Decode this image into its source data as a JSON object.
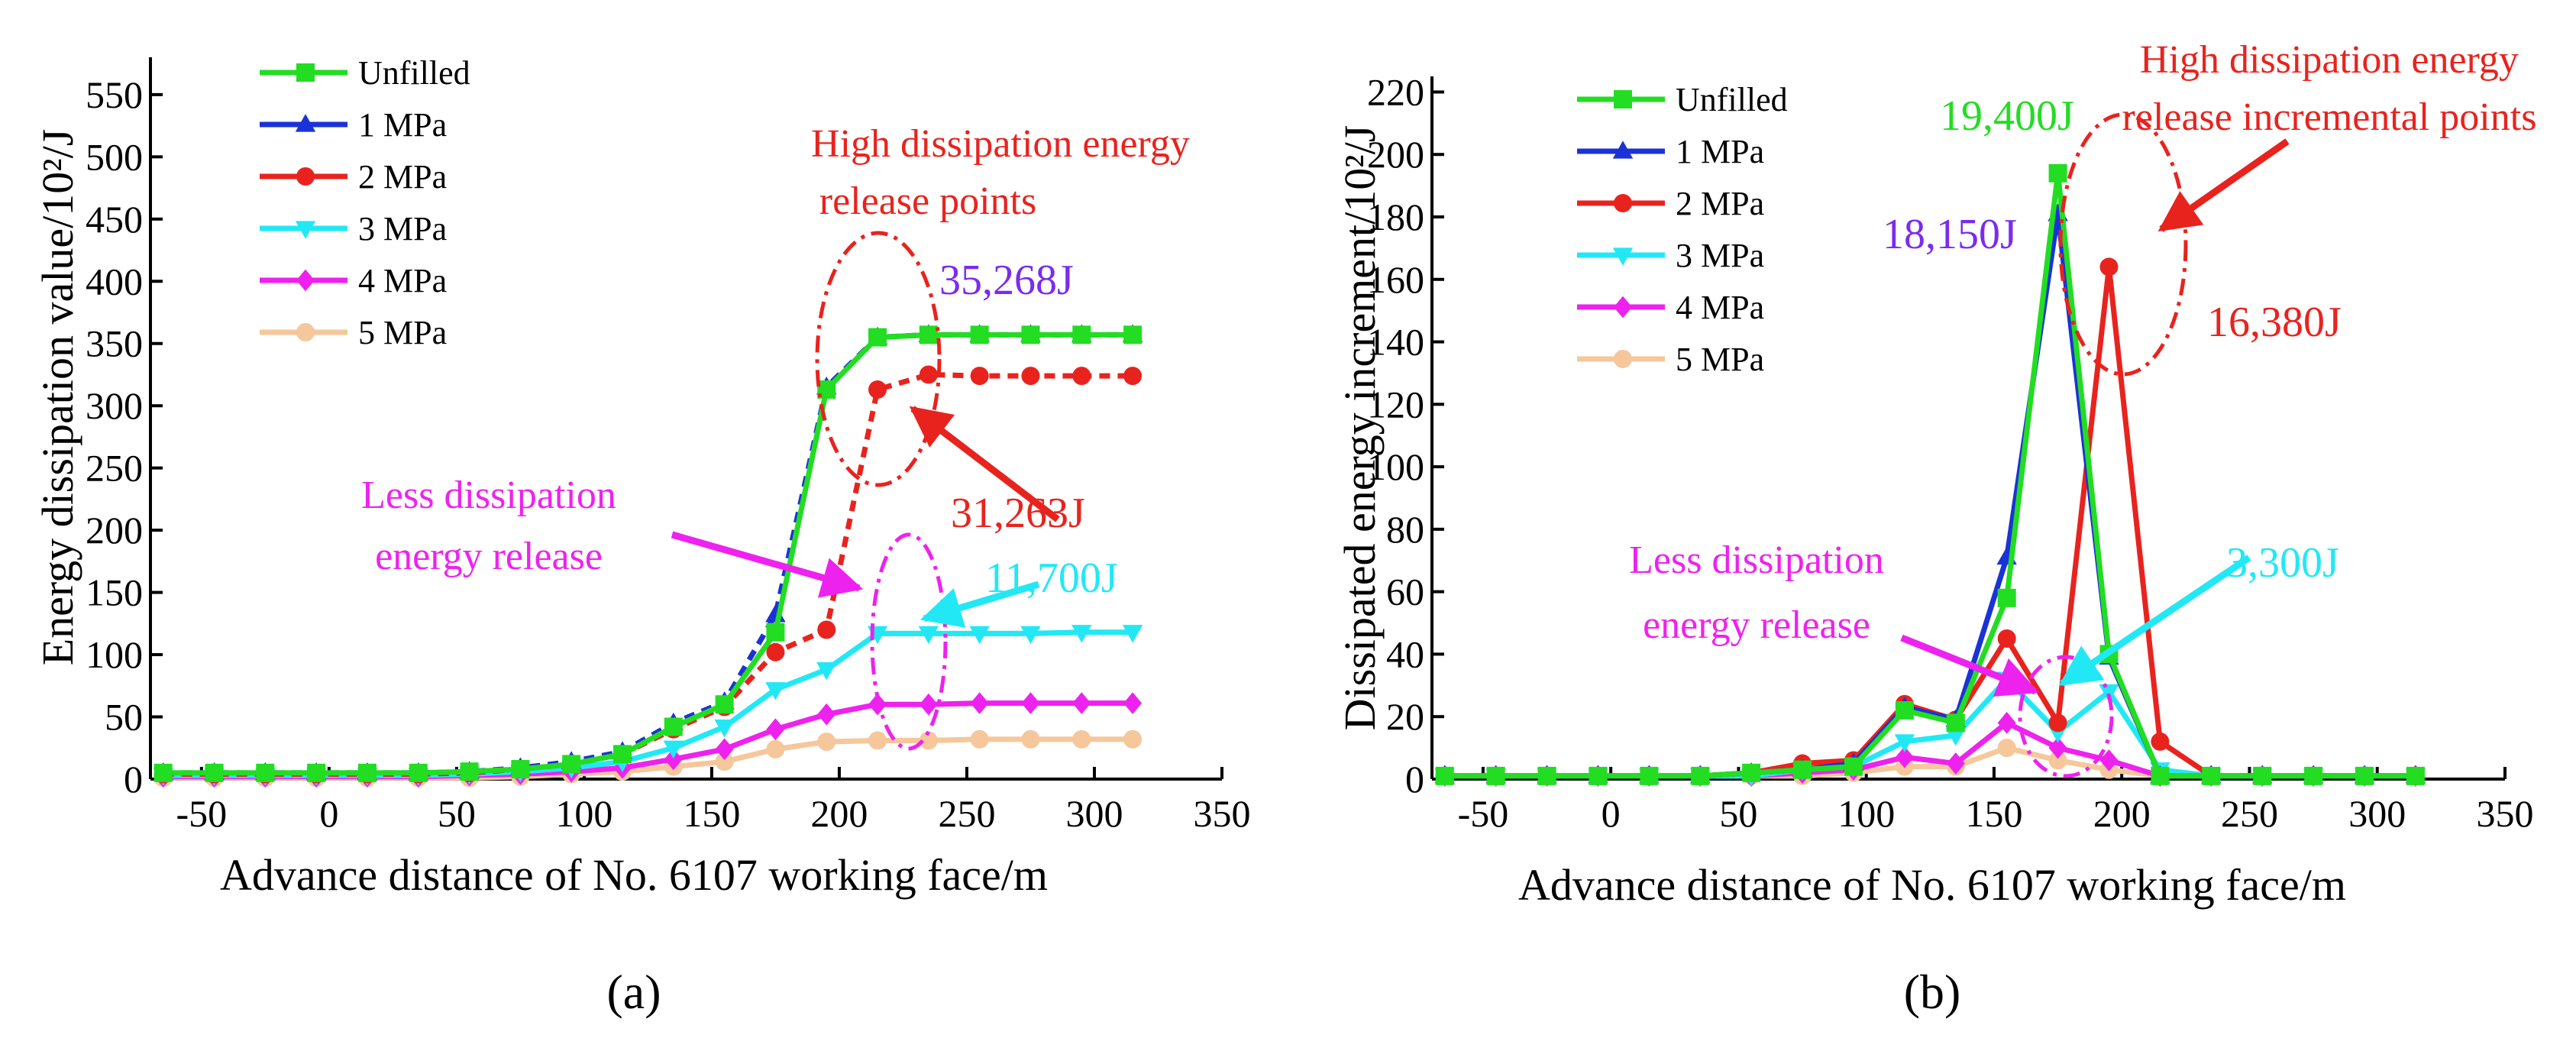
{
  "chart_data": [
    {
      "type": "line",
      "panel_label": "(a)",
      "xlabel": "Advance distance of No. 6107 working face/m",
      "ylabel": "Energy dissipation value/10²/J",
      "xlim": [
        -70,
        350
      ],
      "ylim": [
        0,
        580
      ],
      "x_ticks": [
        -50,
        0,
        50,
        100,
        150,
        200,
        250,
        300,
        350
      ],
      "y_ticks": [
        0,
        50,
        100,
        150,
        200,
        250,
        300,
        350,
        400,
        450,
        500,
        550
      ],
      "grid": false,
      "legend_position": "top-left",
      "x": [
        -65,
        -45,
        -25,
        -5,
        15,
        35,
        55,
        75,
        95,
        115,
        135,
        155,
        175,
        195,
        215,
        235,
        255,
        275,
        295,
        315
      ],
      "series": [
        {
          "name": "Unfilled",
          "color": "#22dd22",
          "marker": "square",
          "values": [
            5,
            5,
            5,
            5,
            5,
            5,
            6,
            8,
            12,
            20,
            42,
            60,
            118,
            313,
            355,
            357,
            357,
            357,
            357,
            357
          ]
        },
        {
          "name": "1 MPa",
          "color": "#1a33d6",
          "marker": "triangle-up",
          "values": [
            5,
            5,
            5,
            5,
            5,
            5,
            6,
            9,
            14,
            22,
            45,
            62,
            132,
            315,
            355,
            357,
            357,
            357,
            357,
            357
          ]
        },
        {
          "name": "2 MPa",
          "color": "#e8231e",
          "marker": "circle",
          "values": [
            4,
            4,
            4,
            4,
            4,
            4,
            5,
            8,
            12,
            20,
            40,
            58,
            102,
            120,
            313,
            325,
            324,
            324,
            324,
            324
          ]
        },
        {
          "name": "3 MPa",
          "color": "#22e8f5",
          "marker": "triangle-down",
          "values": [
            3,
            3,
            3,
            3,
            3,
            3,
            4,
            6,
            9,
            14,
            25,
            42,
            72,
            88,
            117,
            117,
            117,
            117,
            118,
            118
          ]
        },
        {
          "name": "4 MPa",
          "color": "#ee22ee",
          "marker": "diamond",
          "values": [
            2,
            2,
            2,
            2,
            2,
            2,
            3,
            4,
            6,
            9,
            16,
            24,
            40,
            52,
            60,
            60,
            61,
            61,
            61,
            61
          ]
        },
        {
          "name": "5 MPa",
          "color": "#f5c79a",
          "marker": "circle",
          "values": [
            1,
            1,
            1,
            1,
            1,
            1,
            1,
            2,
            4,
            6,
            10,
            14,
            24,
            30,
            31,
            31,
            32,
            32,
            32,
            32
          ]
        }
      ],
      "annotations": [
        {
          "text": "High dissipation energy",
          "color": "#e8231e"
        },
        {
          "text": "release points",
          "color": "#e8231e"
        },
        {
          "text": "Less dissipation",
          "color": "#ee22ee"
        },
        {
          "text": "energy release",
          "color": "#ee22ee"
        },
        {
          "text": "35,268J",
          "color": "#7a2cf0"
        },
        {
          "text": "31,263J",
          "color": "#e8231e"
        },
        {
          "text": "11,700J",
          "color": "#22e8f5"
        }
      ]
    },
    {
      "type": "line",
      "panel_label": "(b)",
      "xlabel": "Advance distance of No. 6107 working face/m",
      "ylabel": "Dissipated energy increment/10²/J",
      "xlim": [
        -70,
        350
      ],
      "ylim": [
        0,
        225
      ],
      "x_ticks": [
        -50,
        0,
        50,
        100,
        150,
        200,
        250,
        300,
        350
      ],
      "y_ticks": [
        0,
        20,
        40,
        60,
        80,
        100,
        120,
        140,
        160,
        180,
        200,
        220
      ],
      "grid": false,
      "legend_position": "top-left",
      "x": [
        -65,
        -45,
        -25,
        -5,
        15,
        35,
        55,
        75,
        95,
        115,
        135,
        155,
        175,
        195,
        215,
        235,
        255,
        275,
        295,
        315
      ],
      "series": [
        {
          "name": "Unfilled",
          "color": "#22dd22",
          "marker": "square",
          "values": [
            1,
            1,
            1,
            1,
            1,
            1,
            2,
            3,
            4,
            22,
            18,
            58,
            194,
            40,
            1,
            1,
            1,
            1,
            1,
            1
          ]
        },
        {
          "name": "1 MPa",
          "color": "#1a33d6",
          "marker": "triangle-up",
          "values": [
            1,
            1,
            1,
            1,
            1,
            1,
            2,
            3,
            5,
            23,
            19,
            71,
            181,
            39,
            1,
            1,
            1,
            1,
            1,
            1
          ]
        },
        {
          "name": "2 MPa",
          "color": "#e8231e",
          "marker": "circle",
          "values": [
            1,
            1,
            1,
            1,
            1,
            1,
            2,
            5,
            6,
            24,
            19,
            45,
            18,
            164,
            12,
            1,
            1,
            1,
            1,
            1
          ]
        },
        {
          "name": "3 MPa",
          "color": "#22e8f5",
          "marker": "triangle-down",
          "values": [
            1,
            1,
            1,
            1,
            1,
            1,
            1,
            3,
            4,
            12,
            14,
            32,
            15,
            28,
            3,
            1,
            1,
            1,
            1,
            1
          ]
        },
        {
          "name": "4 MPa",
          "color": "#ee22ee",
          "marker": "diamond",
          "values": [
            1,
            1,
            1,
            1,
            1,
            1,
            1,
            2,
            3,
            7,
            5,
            18,
            10,
            6,
            1,
            1,
            1,
            1,
            1,
            1
          ]
        },
        {
          "name": "5 MPa",
          "color": "#f5c79a",
          "marker": "circle",
          "values": [
            1,
            1,
            1,
            1,
            1,
            1,
            1,
            1,
            2,
            4,
            4,
            10,
            6,
            3,
            1,
            1,
            1,
            1,
            1,
            1
          ]
        }
      ],
      "annotations": [
        {
          "text": "High dissipation energy",
          "color": "#e8231e"
        },
        {
          "text": "release incremental points",
          "color": "#e8231e"
        },
        {
          "text": "Less dissipation",
          "color": "#ee22ee"
        },
        {
          "text": "energy release",
          "color": "#ee22ee"
        },
        {
          "text": "19,400J",
          "color": "#22dd22"
        },
        {
          "text": "18,150J",
          "color": "#7a2cf0"
        },
        {
          "text": "16,380J",
          "color": "#e8231e"
        },
        {
          "text": "3,300J",
          "color": "#22e8f5"
        }
      ]
    }
  ]
}
